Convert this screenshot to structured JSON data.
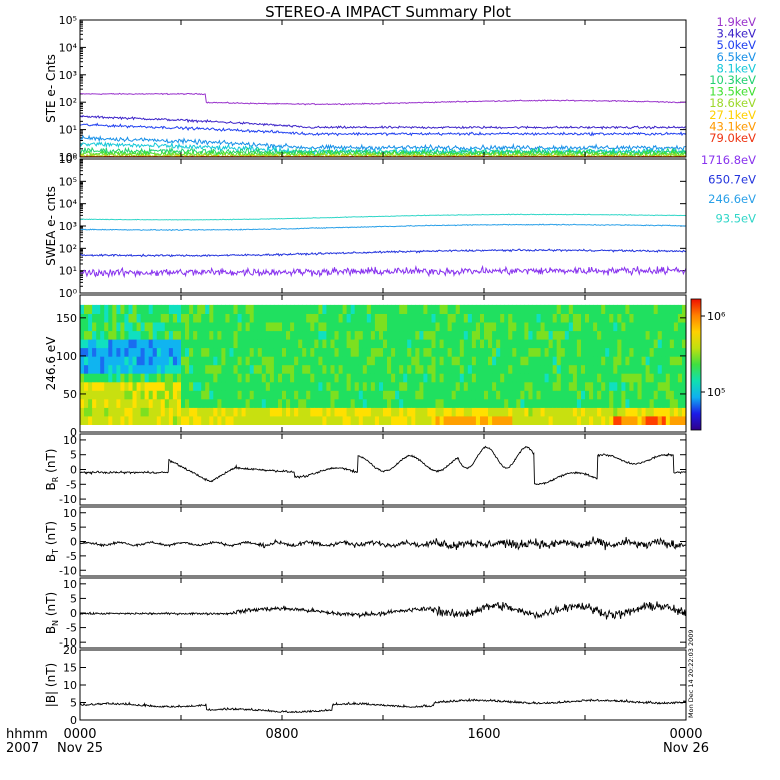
{
  "title": "STEREO-A IMPACT Summary Plot",
  "xaxis": {
    "ticks": [
      "0000",
      "0800",
      "1600",
      "0000"
    ],
    "dates": [
      "Nov 25",
      "",
      "",
      "Nov 26"
    ],
    "label_time": "hhmm",
    "label_year": "2007"
  },
  "timestamp": "Mon Dec 14 20:22:03 2009",
  "chart_data": [
    {
      "type": "line",
      "name": "ste",
      "ylabel": "STE e- Cnts",
      "yscale": "log",
      "ylim": [
        1,
        100000
      ],
      "yticks": [
        "10⁰",
        "10¹",
        "10²",
        "10³",
        "10⁴",
        "10⁵"
      ],
      "xlim_hours": [
        0,
        24
      ],
      "series": [
        {
          "name": "1.9keV",
          "color": "#9933cc",
          "values_desc": "≈200 until 05h, then ≈100"
        },
        {
          "name": "3.4keV",
          "color": "#3b22c8",
          "values_desc": "≈30 falling to ≈10"
        },
        {
          "name": "5.0keV",
          "color": "#2040f0",
          "values_desc": "≈15 falling to ≈6"
        },
        {
          "name": "6.5keV",
          "color": "#1890e8",
          "values_desc": "≈5 falling to ≈2"
        },
        {
          "name": "8.1keV",
          "color": "#14c8d8",
          "values_desc": "≈3 falling to ≈1.5"
        },
        {
          "name": "10.3keV",
          "color": "#20d070",
          "values_desc": "≈1.6"
        },
        {
          "name": "13.5keV",
          "color": "#40e030",
          "values_desc": "≈1.3"
        },
        {
          "name": "18.6keV",
          "color": "#9cd82a",
          "values_desc": "≈1.1"
        },
        {
          "name": "27.1keV",
          "color": "#ffd000",
          "values_desc": "≈1"
        },
        {
          "name": "43.1keV",
          "color": "#ff9900",
          "values_desc": "≈1"
        },
        {
          "name": "79.0keV",
          "color": "#ee3311",
          "values_desc": "≈1"
        }
      ]
    },
    {
      "type": "line",
      "name": "swea",
      "ylabel": "SWEA e- cnts",
      "yscale": "log",
      "ylim": [
        1,
        1000000
      ],
      "yticks": [
        "10⁰",
        "10¹",
        "10²",
        "10³",
        "10⁴",
        "10⁵",
        "10⁶"
      ],
      "series": [
        {
          "name": "1716.8eV",
          "color": "#8833ee",
          "level": 8
        },
        {
          "name": "650.7eV",
          "color": "#2233dd",
          "level": 50
        },
        {
          "name": "246.6eV",
          "color": "#2aa0e8",
          "level": 700
        },
        {
          "name": "93.5eV",
          "color": "#30d6c8",
          "level": 2000
        }
      ]
    },
    {
      "type": "heatmap",
      "name": "pitch-angle",
      "ylabel": "246.6 eV",
      "ylim": [
        0,
        180
      ],
      "yticks": [
        "0",
        "50",
        "100",
        "150"
      ],
      "colorbar": {
        "ticks": [
          "10⁵",
          "10⁶"
        ],
        "scale": "log"
      }
    },
    {
      "type": "line",
      "name": "br",
      "ylabel": "BR (nT)",
      "ylabel_main": "B",
      "ylabel_sub": "R",
      "ylabel_unit": "(nT)",
      "ylim": [
        -12,
        12
      ],
      "yticks": [
        "-10",
        "-5",
        "0",
        "5",
        "10"
      ]
    },
    {
      "type": "line",
      "name": "bt",
      "ylabel": "BT (nT)",
      "ylabel_main": "B",
      "ylabel_sub": "T",
      "ylabel_unit": "(nT)",
      "ylim": [
        -12,
        12
      ],
      "yticks": [
        "-10",
        "-5",
        "0",
        "5",
        "10"
      ]
    },
    {
      "type": "line",
      "name": "bn",
      "ylabel": "BN (nT)",
      "ylabel_main": "B",
      "ylabel_sub": "N",
      "ylabel_unit": "(nT)",
      "ylim": [
        -12,
        12
      ],
      "yticks": [
        "-10",
        "-5",
        "0",
        "5",
        "10"
      ]
    },
    {
      "type": "line",
      "name": "bmag",
      "ylabel": "|B| (nT)",
      "ylabel_main": "|B|",
      "ylabel_sub": "",
      "ylabel_unit": "(nT)",
      "ylim": [
        0,
        20
      ],
      "yticks": [
        "0",
        "5",
        "10",
        "15",
        "20"
      ]
    }
  ]
}
